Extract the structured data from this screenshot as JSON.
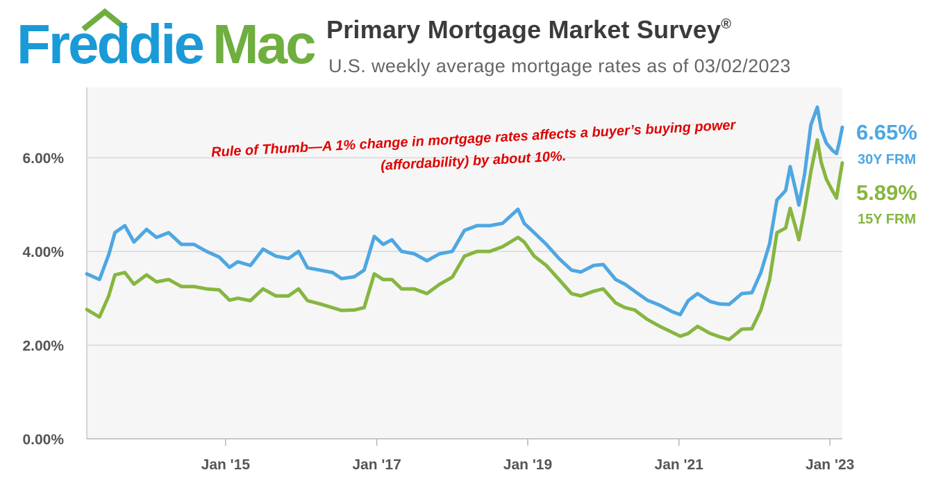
{
  "logo": {
    "part1": "Freddie",
    "part2": "Mac"
  },
  "title": "Primary Mortgage Market Survey",
  "title_mark": "®",
  "subtitle": "U.S. weekly average mortgage rates as of 03/02/2023",
  "colors": {
    "blue": "#4ea7e2",
    "green": "#86b640",
    "annotation": "#e00000",
    "plot_bg": "#f6f6f6",
    "grid": "#d9d9d9"
  },
  "chart_data": {
    "type": "line",
    "ylim": [
      0,
      7.5
    ],
    "xlim": [
      "2013-03-01",
      "2023-03-02"
    ],
    "yticks": [
      0,
      2,
      4,
      6
    ],
    "ytick_labels": [
      "0.00%",
      "2.00%",
      "4.00%",
      "6.00%"
    ],
    "xticks": [
      "2015-01-01",
      "2017-01-01",
      "2019-01-01",
      "2021-01-01",
      "2023-01-01"
    ],
    "xtick_labels": [
      "Jan '15",
      "Jan '17",
      "Jan '19",
      "Jan '21",
      "Jan '23"
    ],
    "grid": true,
    "annotation": [
      "Rule of Thumb—A 1% change in mortgage rates affects a buyer’s buying power",
      "(affordability) by about 10%."
    ],
    "series": [
      {
        "name": "30Y FRM",
        "end_label": "6.65%",
        "color": "#4ea7e2",
        "x": [
          "2013-03-01",
          "2013-05-01",
          "2013-06-15",
          "2013-07-15",
          "2013-09-01",
          "2013-10-15",
          "2013-12-15",
          "2014-02-01",
          "2014-04-01",
          "2014-06-01",
          "2014-08-01",
          "2014-10-01",
          "2014-12-01",
          "2015-01-20",
          "2015-03-01",
          "2015-05-01",
          "2015-07-01",
          "2015-09-01",
          "2015-11-01",
          "2015-12-20",
          "2016-02-01",
          "2016-04-01",
          "2016-06-01",
          "2016-07-15",
          "2016-09-15",
          "2016-11-01",
          "2016-12-20",
          "2017-02-01",
          "2017-03-15",
          "2017-05-01",
          "2017-07-01",
          "2017-09-01",
          "2017-11-01",
          "2018-01-01",
          "2018-03-01",
          "2018-05-01",
          "2018-07-01",
          "2018-09-01",
          "2018-11-15",
          "2018-12-15",
          "2019-02-01",
          "2019-04-01",
          "2019-06-01",
          "2019-08-01",
          "2019-09-15",
          "2019-11-15",
          "2020-01-01",
          "2020-03-01",
          "2020-04-15",
          "2020-06-01",
          "2020-08-01",
          "2020-10-01",
          "2020-12-01",
          "2021-01-07",
          "2021-02-15",
          "2021-04-01",
          "2021-06-01",
          "2021-07-15",
          "2021-09-01",
          "2021-11-01",
          "2021-12-20",
          "2022-02-01",
          "2022-03-15",
          "2022-04-20",
          "2022-06-01",
          "2022-06-23",
          "2022-07-20",
          "2022-08-04",
          "2022-09-01",
          "2022-10-01",
          "2022-11-01",
          "2022-11-20",
          "2022-12-15",
          "2023-01-15",
          "2023-02-02",
          "2023-02-15",
          "2023-03-02"
        ],
        "y": [
          3.52,
          3.4,
          3.93,
          4.4,
          4.55,
          4.2,
          4.47,
          4.3,
          4.4,
          4.15,
          4.15,
          4.0,
          3.88,
          3.66,
          3.78,
          3.7,
          4.05,
          3.9,
          3.85,
          4.0,
          3.65,
          3.6,
          3.55,
          3.42,
          3.46,
          3.6,
          4.32,
          4.15,
          4.25,
          4.0,
          3.95,
          3.8,
          3.95,
          4.0,
          4.45,
          4.55,
          4.55,
          4.6,
          4.9,
          4.6,
          4.4,
          4.15,
          3.85,
          3.6,
          3.56,
          3.7,
          3.72,
          3.4,
          3.3,
          3.15,
          2.96,
          2.85,
          2.71,
          2.65,
          2.95,
          3.1,
          2.93,
          2.88,
          2.87,
          3.1,
          3.12,
          3.55,
          4.16,
          5.1,
          5.3,
          5.81,
          5.3,
          4.99,
          5.66,
          6.7,
          7.08,
          6.61,
          6.31,
          6.15,
          6.09,
          6.32,
          6.65
        ]
      },
      {
        "name": "15Y FRM",
        "end_label": "5.89%",
        "color": "#86b640",
        "x": [
          "2013-03-01",
          "2013-05-01",
          "2013-06-15",
          "2013-07-15",
          "2013-09-01",
          "2013-10-15",
          "2013-12-15",
          "2014-02-01",
          "2014-04-01",
          "2014-06-01",
          "2014-08-01",
          "2014-10-01",
          "2014-12-01",
          "2015-01-20",
          "2015-03-01",
          "2015-05-01",
          "2015-07-01",
          "2015-09-01",
          "2015-11-01",
          "2015-12-20",
          "2016-02-01",
          "2016-04-01",
          "2016-06-01",
          "2016-07-15",
          "2016-09-15",
          "2016-11-01",
          "2016-12-20",
          "2017-02-01",
          "2017-03-15",
          "2017-05-01",
          "2017-07-01",
          "2017-09-01",
          "2017-11-01",
          "2018-01-01",
          "2018-03-01",
          "2018-05-01",
          "2018-07-01",
          "2018-09-01",
          "2018-11-15",
          "2018-12-15",
          "2019-02-01",
          "2019-04-01",
          "2019-06-01",
          "2019-08-01",
          "2019-09-15",
          "2019-11-15",
          "2020-01-01",
          "2020-03-01",
          "2020-04-15",
          "2020-06-01",
          "2020-08-01",
          "2020-10-01",
          "2020-12-01",
          "2021-01-07",
          "2021-02-15",
          "2021-04-01",
          "2021-06-01",
          "2021-07-15",
          "2021-09-01",
          "2021-11-01",
          "2021-12-20",
          "2022-02-01",
          "2022-03-15",
          "2022-04-20",
          "2022-06-01",
          "2022-06-23",
          "2022-07-20",
          "2022-08-04",
          "2022-09-01",
          "2022-10-01",
          "2022-11-01",
          "2022-11-20",
          "2022-12-15",
          "2023-01-15",
          "2023-02-02",
          "2023-02-15",
          "2023-03-02"
        ],
        "y": [
          2.76,
          2.6,
          3.05,
          3.5,
          3.55,
          3.3,
          3.5,
          3.35,
          3.4,
          3.25,
          3.25,
          3.2,
          3.18,
          2.96,
          3.0,
          2.95,
          3.2,
          3.05,
          3.05,
          3.2,
          2.95,
          2.88,
          2.8,
          2.74,
          2.75,
          2.8,
          3.52,
          3.4,
          3.4,
          3.2,
          3.2,
          3.1,
          3.3,
          3.45,
          3.9,
          4.0,
          4.0,
          4.1,
          4.3,
          4.2,
          3.9,
          3.7,
          3.4,
          3.1,
          3.05,
          3.15,
          3.2,
          2.9,
          2.8,
          2.75,
          2.55,
          2.4,
          2.27,
          2.19,
          2.25,
          2.4,
          2.25,
          2.18,
          2.12,
          2.34,
          2.35,
          2.75,
          3.39,
          4.4,
          4.5,
          4.92,
          4.5,
          4.25,
          4.9,
          5.7,
          6.38,
          5.9,
          5.54,
          5.28,
          5.14,
          5.51,
          5.89
        ]
      }
    ]
  }
}
